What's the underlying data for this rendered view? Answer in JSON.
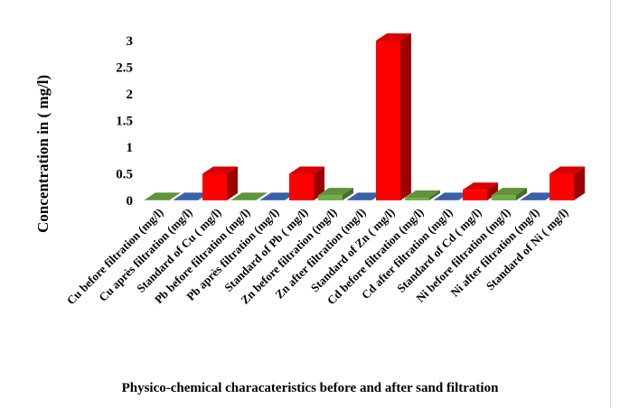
{
  "chart_data": {
    "type": "bar",
    "style": "3d-column",
    "title": "Physico-chemical characateristics before and after sand filtration",
    "ylabel": "Concentration in ( mg/l)",
    "xlabel": "",
    "ylim": [
      0,
      3
    ],
    "yticks": [
      "0",
      "0.5",
      "1",
      "1.5",
      "2",
      "2.5",
      "3"
    ],
    "grid": false,
    "legend": "none",
    "categories": [
      "Cu before filtration (mg/l)",
      "Cu après  filtration (mg/l)",
      "Standard of Cu ( mg/l)",
      "Pb before filtration (mg/l)",
      "Pb après  filtration (mg/l)",
      "Standard of Pb ( mg/l)",
      "Zn before filtration (mg/l)",
      "Zn after  filtration (mg/l)",
      "Standard of  Zn ( mg/l)",
      "Cd before filtration (mg/l)",
      "Cd after  filtration (mg/l)",
      "Standard of Cd ( mg/l)",
      "Ni before filtration (mg/l)",
      "Ni after  filtration (mg/l)",
      "Standard of Ni ( mg/l)"
    ],
    "values": [
      0.01,
      0.01,
      0.5,
      0.01,
      0.01,
      0.5,
      0.1,
      0.01,
      3,
      0.05,
      0.01,
      0.2,
      0.1,
      0.01,
      0.5
    ],
    "colors": {
      "before": "#70AD47",
      "after": "#4472C4",
      "standard": "#FF0000"
    }
  }
}
